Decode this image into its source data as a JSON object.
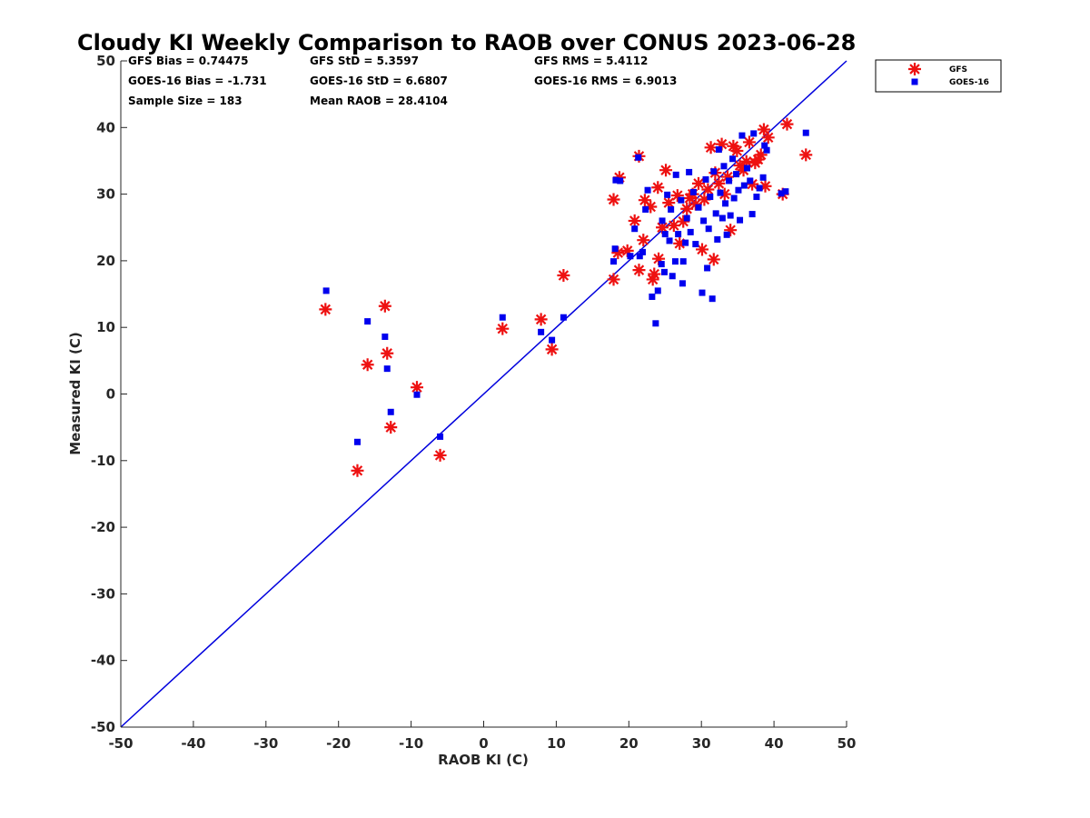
{
  "chart_data": {
    "type": "scatter",
    "title": "Cloudy KI Weekly Comparison to RAOB over CONUS 2023-06-28",
    "xlabel": "RAOB KI (C)",
    "ylabel": "Measured KI (C)",
    "xlim": [
      -50,
      50
    ],
    "ylim": [
      -50,
      50
    ],
    "xticks": [
      "-50",
      "-40",
      "-30",
      "-20",
      "-10",
      "0",
      "10",
      "20",
      "30",
      "40",
      "50"
    ],
    "yticks": [
      "50",
      "40",
      "30",
      "20",
      "10",
      "0",
      "-10",
      "-20",
      "-30",
      "-40",
      "-50"
    ],
    "grid": false,
    "legend_position": "top-right",
    "stats": {
      "gfs_bias": "GFS Bias = 0.74475",
      "gfs_std": "GFS StD = 5.3597",
      "gfs_rms": "GFS RMS = 5.4112",
      "goes_bias": "GOES-16 Bias = -1.731",
      "goes_std": "GOES-16 StD = 6.6807",
      "goes_rms": "GOES-16 RMS = 6.9013",
      "sample_size": "Sample Size = 183",
      "mean_raob": "Mean RAOB = 28.4104"
    },
    "reference_line": {
      "from": [
        -50,
        -50
      ],
      "to": [
        50,
        50
      ],
      "color": "#0000dd"
    },
    "series": [
      {
        "name": "GFS",
        "marker": "asterisk",
        "color": "#ee1111",
        "points": [
          [
            -21.8,
            12.7
          ],
          [
            -17.4,
            -11.5
          ],
          [
            -16.0,
            4.4
          ],
          [
            -13.6,
            13.2
          ],
          [
            -13.3,
            6.1
          ],
          [
            -12.8,
            -5.0
          ],
          [
            -9.2,
            1.0
          ],
          [
            -6.0,
            -9.2
          ],
          [
            2.6,
            9.8
          ],
          [
            7.9,
            11.2
          ],
          [
            9.4,
            6.7
          ],
          [
            11.0,
            17.8
          ],
          [
            17.9,
            17.2
          ],
          [
            17.9,
            29.2
          ],
          [
            18.5,
            21.2
          ],
          [
            18.7,
            32.5
          ],
          [
            19.8,
            21.5
          ],
          [
            20.8,
            26.0
          ],
          [
            21.4,
            18.6
          ],
          [
            21.4,
            35.7
          ],
          [
            22.0,
            23.1
          ],
          [
            22.2,
            29.1
          ],
          [
            23.0,
            28.1
          ],
          [
            23.3,
            17.2
          ],
          [
            23.5,
            18.0
          ],
          [
            24.1,
            20.3
          ],
          [
            24.0,
            31.0
          ],
          [
            24.6,
            25.0
          ],
          [
            25.1,
            33.6
          ],
          [
            25.5,
            28.7
          ],
          [
            26.2,
            25.3
          ],
          [
            26.7,
            29.8
          ],
          [
            27.0,
            22.6
          ],
          [
            27.5,
            25.9
          ],
          [
            28.0,
            27.8
          ],
          [
            28.4,
            29.4
          ],
          [
            28.8,
            30.0
          ],
          [
            29.2,
            28.5
          ],
          [
            29.6,
            31.6
          ],
          [
            30.1,
            21.7
          ],
          [
            30.4,
            29.2
          ],
          [
            30.9,
            30.7
          ],
          [
            31.3,
            37.0
          ],
          [
            31.7,
            20.2
          ],
          [
            31.9,
            33.2
          ],
          [
            32.4,
            31.6
          ],
          [
            32.8,
            37.5
          ],
          [
            33.2,
            30.0
          ],
          [
            33.6,
            32.6
          ],
          [
            34.0,
            24.6
          ],
          [
            34.4,
            37.2
          ],
          [
            34.9,
            36.5
          ],
          [
            35.3,
            34.3
          ],
          [
            35.8,
            33.6
          ],
          [
            36.2,
            34.9
          ],
          [
            36.6,
            37.8
          ],
          [
            37.0,
            31.5
          ],
          [
            37.4,
            34.7
          ],
          [
            37.8,
            35.2
          ],
          [
            38.2,
            35.9
          ],
          [
            38.6,
            39.7
          ],
          [
            38.8,
            31.2
          ],
          [
            39.2,
            38.5
          ],
          [
            41.2,
            30.0
          ],
          [
            41.8,
            40.5
          ],
          [
            44.4,
            35.9
          ]
        ]
      },
      {
        "name": "GOES-16",
        "marker": "square",
        "color": "#0000ee",
        "points": [
          [
            -21.7,
            15.5
          ],
          [
            -17.4,
            -7.2
          ],
          [
            -16.0,
            10.9
          ],
          [
            -13.6,
            8.6
          ],
          [
            -13.3,
            3.8
          ],
          [
            -12.8,
            -2.7
          ],
          [
            -9.2,
            -0.1
          ],
          [
            -6.0,
            -6.4
          ],
          [
            2.6,
            11.5
          ],
          [
            7.9,
            9.3
          ],
          [
            9.4,
            8.1
          ],
          [
            11.0,
            11.5
          ],
          [
            17.9,
            19.9
          ],
          [
            18.1,
            21.8
          ],
          [
            18.2,
            32.1
          ],
          [
            18.8,
            32.0
          ],
          [
            20.2,
            20.7
          ],
          [
            20.8,
            24.8
          ],
          [
            21.3,
            35.5
          ],
          [
            21.5,
            20.7
          ],
          [
            21.9,
            21.3
          ],
          [
            22.3,
            27.7
          ],
          [
            22.6,
            30.6
          ],
          [
            23.2,
            14.6
          ],
          [
            23.7,
            10.6
          ],
          [
            24.0,
            15.5
          ],
          [
            24.5,
            19.5
          ],
          [
            24.6,
            26.0
          ],
          [
            24.9,
            18.3
          ],
          [
            25.0,
            24.0
          ],
          [
            25.3,
            29.9
          ],
          [
            25.6,
            23.0
          ],
          [
            25.8,
            27.7
          ],
          [
            26.0,
            17.7
          ],
          [
            26.4,
            19.9
          ],
          [
            26.5,
            32.9
          ],
          [
            26.8,
            24.0
          ],
          [
            27.2,
            29.1
          ],
          [
            27.4,
            16.6
          ],
          [
            27.5,
            19.9
          ],
          [
            27.8,
            22.7
          ],
          [
            28.0,
            26.4
          ],
          [
            28.3,
            33.3
          ],
          [
            28.5,
            24.3
          ],
          [
            28.9,
            30.3
          ],
          [
            29.2,
            22.5
          ],
          [
            29.6,
            28.0
          ],
          [
            30.1,
            15.2
          ],
          [
            30.3,
            26.0
          ],
          [
            30.6,
            32.2
          ],
          [
            30.8,
            18.9
          ],
          [
            31.0,
            24.8
          ],
          [
            31.2,
            29.6
          ],
          [
            31.5,
            14.3
          ],
          [
            31.7,
            33.4
          ],
          [
            32.0,
            27.1
          ],
          [
            32.2,
            23.2
          ],
          [
            32.4,
            36.7
          ],
          [
            32.6,
            30.2
          ],
          [
            32.9,
            26.4
          ],
          [
            33.1,
            34.2
          ],
          [
            33.3,
            28.6
          ],
          [
            33.5,
            23.9
          ],
          [
            33.8,
            32.0
          ],
          [
            34.0,
            26.8
          ],
          [
            34.3,
            35.3
          ],
          [
            34.5,
            29.4
          ],
          [
            34.8,
            33.0
          ],
          [
            35.1,
            30.6
          ],
          [
            35.3,
            26.1
          ],
          [
            35.6,
            38.8
          ],
          [
            35.9,
            31.3
          ],
          [
            36.3,
            33.9
          ],
          [
            36.7,
            32.0
          ],
          [
            37.0,
            27.0
          ],
          [
            37.2,
            39.1
          ],
          [
            37.6,
            29.6
          ],
          [
            38.0,
            30.9
          ],
          [
            38.5,
            32.5
          ],
          [
            38.7,
            37.3
          ],
          [
            39.0,
            36.6
          ],
          [
            41.0,
            30.1
          ],
          [
            41.6,
            30.4
          ],
          [
            44.4,
            39.2
          ]
        ]
      }
    ]
  }
}
